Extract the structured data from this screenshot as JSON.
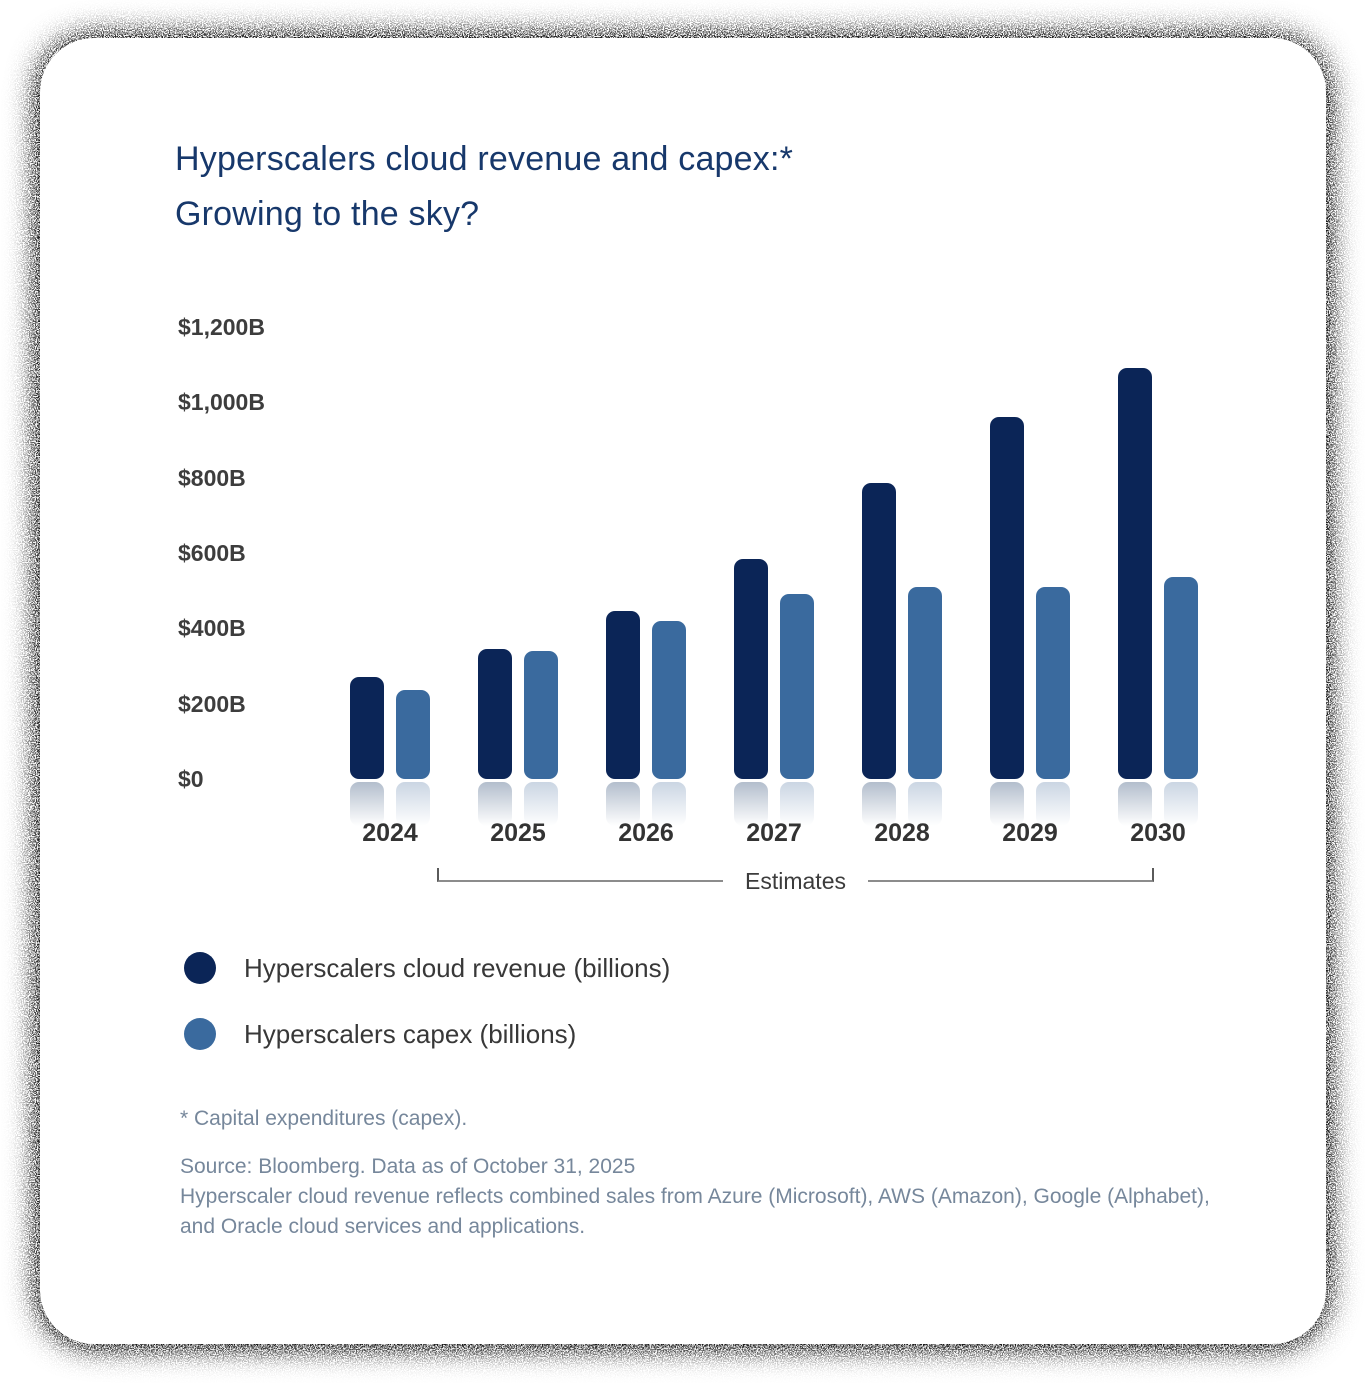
{
  "header": {
    "title_display": "Hyperscalers cloud revenue and capex:*\nGrowing to the sky?"
  },
  "chart_data": {
    "type": "bar",
    "title": "Hyperscalers cloud revenue and capex:* Growing to the sky?",
    "categories": [
      "2024",
      "2025",
      "2026",
      "2027",
      "2028",
      "2029",
      "2030"
    ],
    "series": [
      {
        "name": "Hyperscalers cloud revenue (billions)",
        "color": "#0b2557",
        "values": [
          270,
          345,
          445,
          585,
          785,
          960,
          1090
        ]
      },
      {
        "name": "Hyperscalers capex (billions)",
        "color": "#3a6a9e",
        "values": [
          235,
          340,
          420,
          490,
          510,
          510,
          535
        ]
      }
    ],
    "y_axis": {
      "unit": "USD billions",
      "ticks": [
        "$1,200B",
        "$1,000B",
        "$800B",
        "$600B",
        "$400B",
        "$200B",
        "$0"
      ],
      "tick_values": [
        1200,
        1000,
        800,
        600,
        400,
        200,
        0
      ],
      "ylim": [
        0,
        1200
      ]
    },
    "xlabel": "",
    "ylabel": "",
    "gridlines": false,
    "legend_position": "bottom-left",
    "estimates_note": {
      "label": "Estimates",
      "applies_to": [
        "2025",
        "2026",
        "2027",
        "2028",
        "2029",
        "2030"
      ]
    }
  },
  "legend": {
    "items": [
      {
        "label": "Hyperscalers cloud revenue (billions)",
        "swatch_color": "#0b2557"
      },
      {
        "label": "Hyperscalers capex (billions)",
        "swatch_color": "#3a6a9e"
      }
    ]
  },
  "footnotes": {
    "capex_note": "* Capital expenditures (capex).",
    "source": "Source: Bloomberg. Data as of October 31, 2025",
    "methodology": "Hyperscaler cloud revenue reflects combined sales from Azure (Microsoft), AWS (Amazon), Google (Alphabet), and Oracle cloud services and applications."
  }
}
